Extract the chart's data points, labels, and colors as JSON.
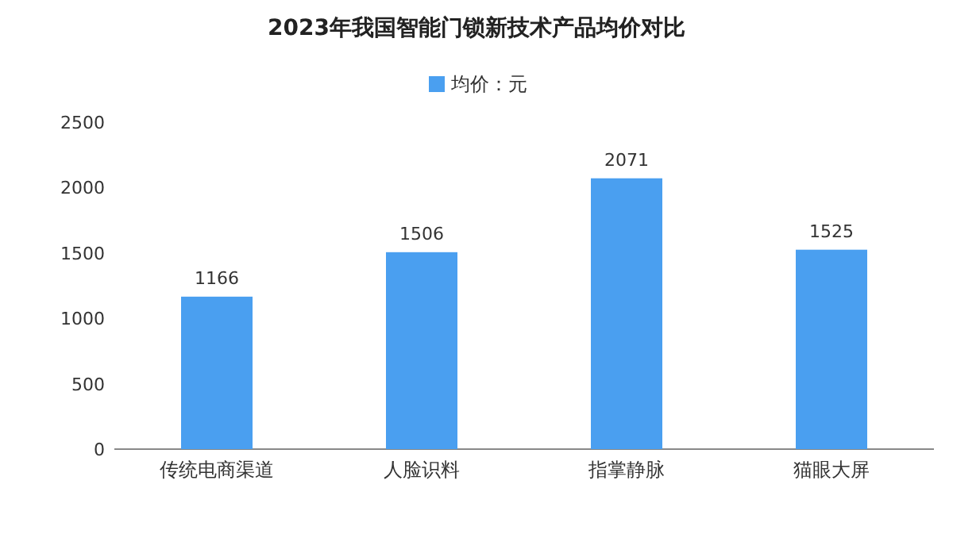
{
  "chart_data": {
    "type": "bar",
    "title": "2023年我国智能门锁新技术产品均价对比",
    "categories": [
      "传统电商渠道",
      "人脸识料",
      "指掌静脉",
      "猫眼大屏"
    ],
    "series": [
      {
        "name": "均价：元",
        "color": "#4a9ff0",
        "values": [
          1166,
          1506,
          2071,
          1525
        ]
      }
    ],
    "ylim": [
      0,
      2500
    ],
    "yticks": [
      0,
      500,
      1000,
      1500,
      2000,
      2500
    ],
    "data_labels": true,
    "legend": "top",
    "grid": false
  }
}
